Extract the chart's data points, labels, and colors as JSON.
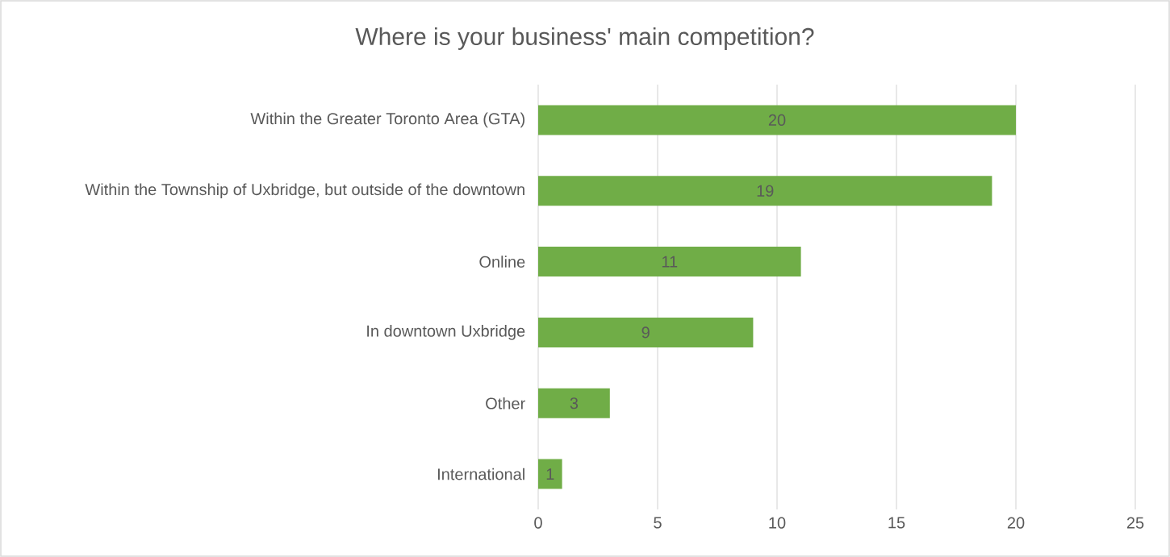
{
  "chart_data": {
    "type": "bar",
    "orientation": "horizontal",
    "title": "Where is your business' main competition?",
    "categories": [
      "Within the Greater Toronto Area (GTA)",
      "Within the Township of Uxbridge, but outside of the downtown",
      "Online",
      "In downtown Uxbridge",
      "Other",
      "International"
    ],
    "values": [
      20,
      19,
      11,
      9,
      3,
      1
    ],
    "color": "#70ad47",
    "xlim": [
      0,
      25
    ],
    "xticks": [
      0,
      5,
      10,
      15,
      20,
      25
    ],
    "grid": "x",
    "data_labels": true
  }
}
